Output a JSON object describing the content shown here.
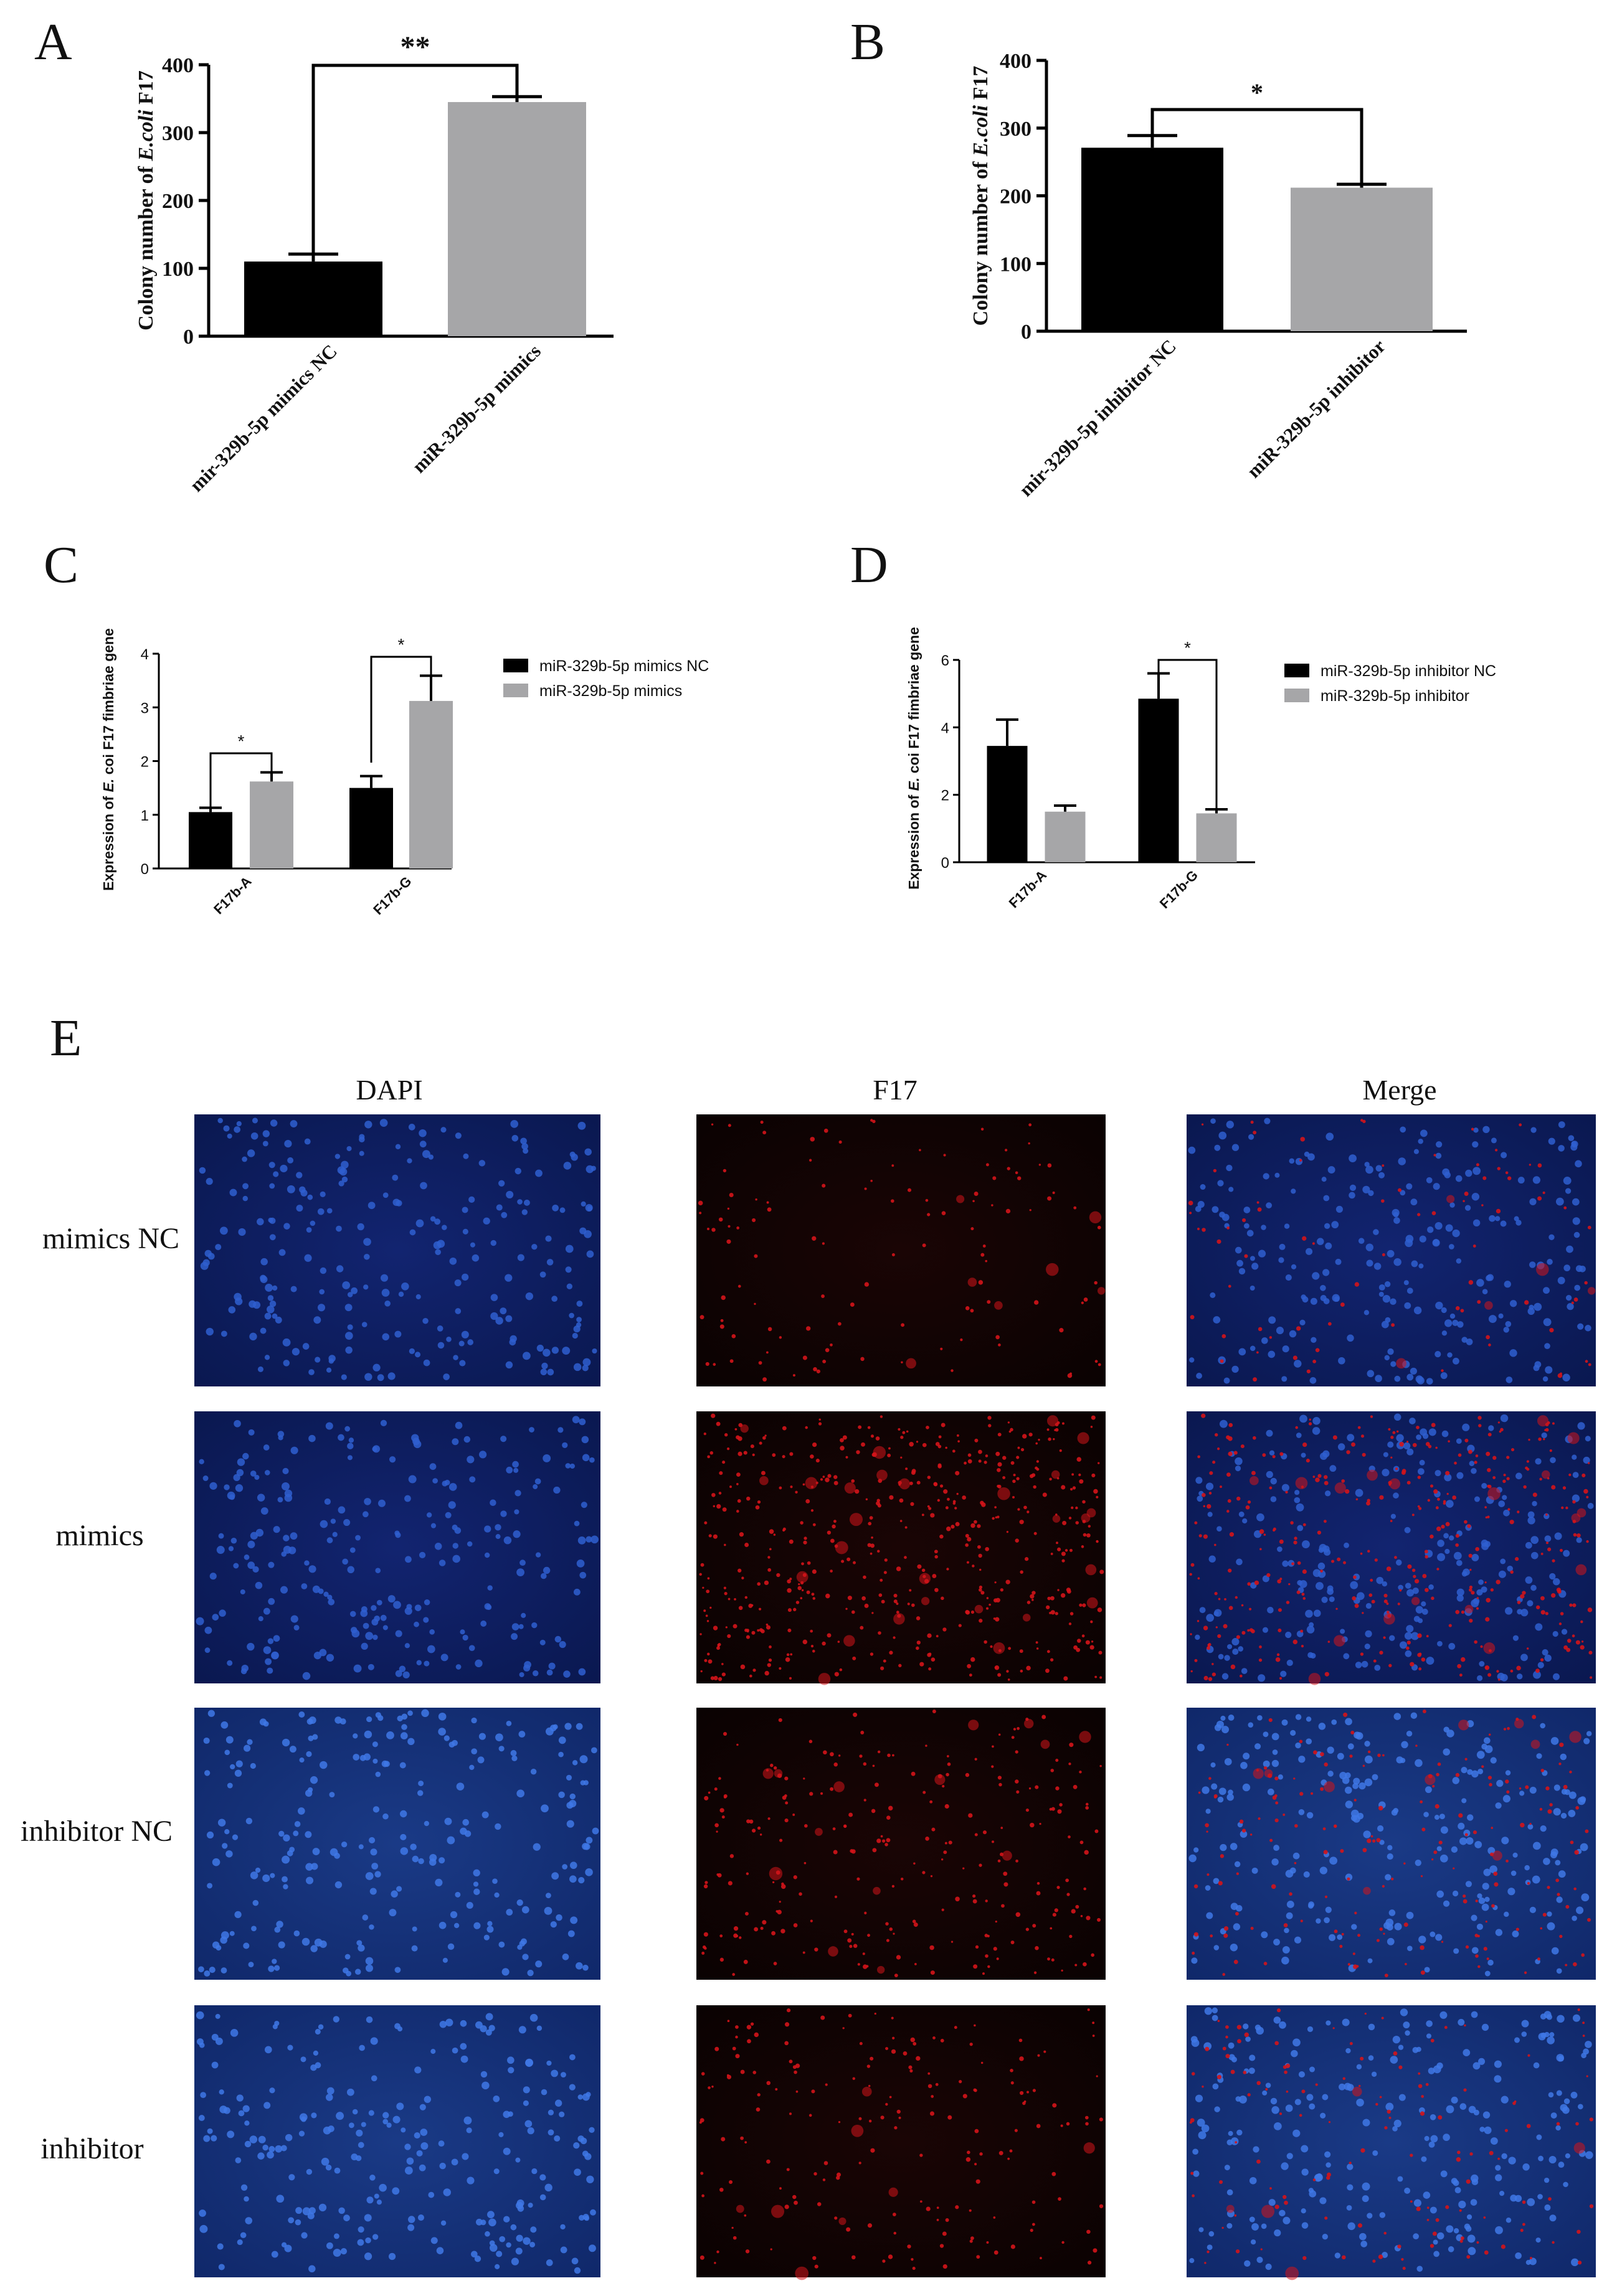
{
  "colors": {
    "black_bar": "#000000",
    "gray_bar": "#a6a6a8",
    "dapi_blue": "#0d1f5e",
    "f17_red": "#d4141a"
  },
  "panel_letters": [
    "A",
    "B",
    "C",
    "D",
    "E"
  ],
  "chart_data": [
    {
      "panel": "A",
      "type": "bar",
      "ylabel_prefix": "Colony number of ",
      "ylabel_italic": "E.coli",
      "ylabel_suffix": " F17",
      "ylim": [
        0,
        400
      ],
      "yticks": [
        "0",
        "100",
        "200",
        "300",
        "400"
      ],
      "categories": [
        "mir-329b-5p mimics NC",
        "miR-329b-5p mimics"
      ],
      "values": [
        110,
        345
      ],
      "errors": [
        11,
        8
      ],
      "significance": "**"
    },
    {
      "panel": "B",
      "type": "bar",
      "ylabel_prefix": "Colony number of ",
      "ylabel_italic": "E.coli",
      "ylabel_suffix": " F17",
      "ylim": [
        0,
        400
      ],
      "yticks": [
        "0",
        "100",
        "200",
        "300",
        "400"
      ],
      "categories": [
        "mir-329b-5p inhibitor NC",
        "miR-329b-5p inhibitor"
      ],
      "values": [
        271,
        212
      ],
      "errors": [
        18,
        5
      ],
      "significance": "*"
    },
    {
      "panel": "C",
      "type": "bar",
      "ylabel_prefix": "Expression of ",
      "ylabel_italic": "E.",
      "ylabel_suffix": " coi F17 fimbriae gene",
      "ylim": [
        0,
        4
      ],
      "yticks": [
        "0",
        "1",
        "2",
        "3",
        "4"
      ],
      "categories": [
        "F17b-A",
        "F17b-G"
      ],
      "series": [
        {
          "name": "miR-329b-5p  mimics NC",
          "values": [
            1.05,
            1.5
          ],
          "errors": [
            0.08,
            0.22
          ]
        },
        {
          "name": "miR-329b-5p mimics",
          "values": [
            1.62,
            3.12
          ],
          "errors": [
            0.17,
            0.47
          ]
        }
      ],
      "significance": [
        "*",
        "*"
      ]
    },
    {
      "panel": "D",
      "type": "bar",
      "ylabel_prefix": "Expression of ",
      "ylabel_italic": "E.",
      "ylabel_suffix": " coi F17 fimbriae gene",
      "ylim": [
        0,
        6
      ],
      "yticks": [
        "0",
        "2",
        "4",
        "6"
      ],
      "categories": [
        "F17b-A",
        "F17b-G"
      ],
      "series": [
        {
          "name": "miR-329b-5p inhibitor NC",
          "values": [
            3.45,
            4.85
          ],
          "errors": [
            0.78,
            0.75
          ]
        },
        {
          "name": "miR-329b-5p inhibitor",
          "values": [
            1.5,
            1.45
          ],
          "errors": [
            0.18,
            0.12
          ]
        }
      ],
      "significance": [
        "",
        "*"
      ]
    }
  ],
  "microscopy": {
    "columns": [
      "DAPI",
      "F17",
      "Merge"
    ],
    "rows": [
      "mimics NC",
      "mimics",
      "inhibitor NC",
      "inhibitor"
    ]
  }
}
